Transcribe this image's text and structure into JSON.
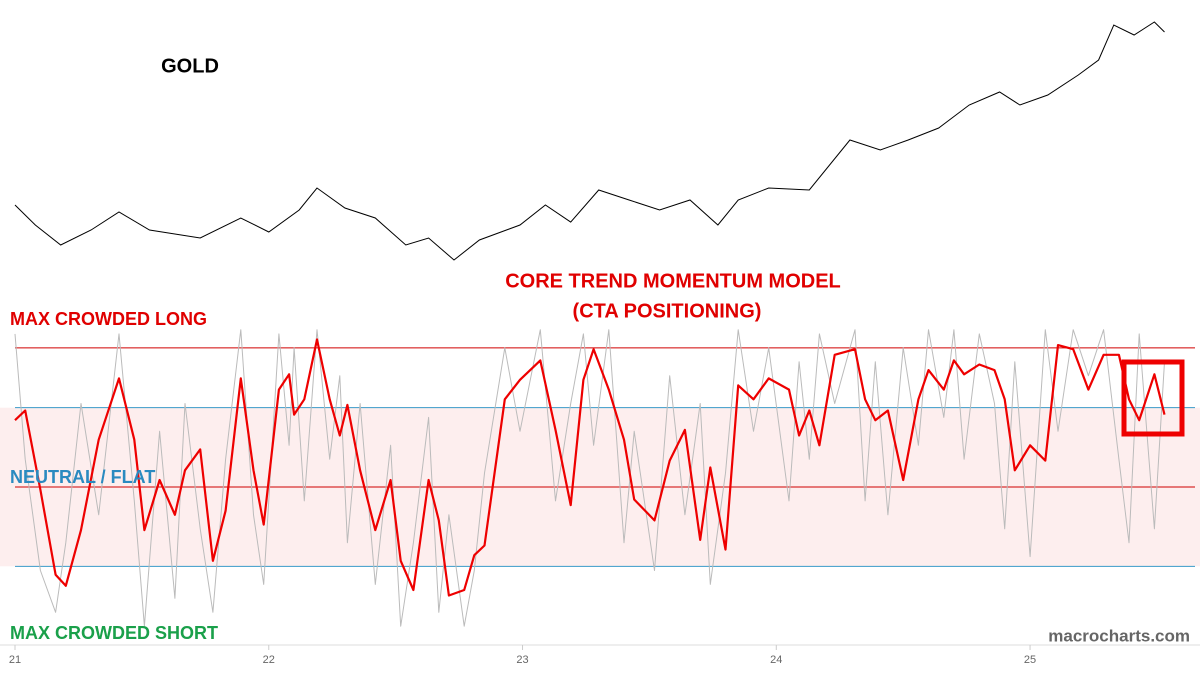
{
  "chart_data": [
    {
      "type": "line",
      "title": "GOLD",
      "color": "#000000",
      "x": [
        21.0,
        21.08,
        21.18,
        21.3,
        21.41,
        21.53,
        21.73,
        21.89,
        22.0,
        22.12,
        22.19,
        22.3,
        22.42,
        22.54,
        22.63,
        22.73,
        22.83,
        22.99,
        23.09,
        23.19,
        23.3,
        23.42,
        23.54,
        23.66,
        23.77,
        23.85,
        23.97,
        24.13,
        24.29,
        24.41,
        24.52,
        24.64,
        24.76,
        24.88,
        24.96,
        25.07,
        25.19,
        25.27,
        25.33,
        25.41,
        25.49,
        25.53
      ],
      "values": [
        2056,
        1904,
        1752,
        1866,
        2003,
        1866,
        1805,
        1957,
        1851,
        2018,
        2185,
        2033,
        1957,
        1752,
        1805,
        1638,
        1790,
        1904,
        2056,
        1926,
        2170,
        2094,
        2018,
        2094,
        1904,
        2094,
        2185,
        2170,
        2550,
        2474,
        2550,
        2641,
        2816,
        2915,
        2816,
        2892,
        3044,
        3158,
        3424,
        3348,
        3447,
        3371
      ],
      "xlim": [
        21,
        25.65
      ],
      "ylim": [
        1600,
        3500
      ]
    },
    {
      "type": "line",
      "title": "CORE TREND MOMENTUM MODEL",
      "subtitle": "(CTA POSITIONING)",
      "x": [
        21.0,
        21.04,
        21.1,
        21.16,
        21.2,
        21.26,
        21.33,
        21.41,
        21.47,
        21.51,
        21.57,
        21.63,
        21.67,
        21.73,
        21.78,
        21.83,
        21.89,
        21.94,
        21.98,
        22.04,
        22.08,
        22.1,
        22.14,
        22.19,
        22.24,
        22.28,
        22.31,
        22.36,
        22.42,
        22.48,
        22.52,
        22.57,
        22.63,
        22.67,
        22.71,
        22.77,
        22.81,
        22.85,
        22.93,
        22.99,
        23.07,
        23.13,
        23.19,
        23.24,
        23.28,
        23.34,
        23.4,
        23.44,
        23.52,
        23.58,
        23.64,
        23.7,
        23.74,
        23.8,
        23.85,
        23.91,
        23.97,
        24.05,
        24.09,
        24.13,
        24.17,
        24.23,
        24.31,
        24.35,
        24.39,
        24.44,
        24.5,
        24.56,
        24.6,
        24.66,
        24.7,
        24.74,
        24.8,
        24.86,
        24.9,
        24.94,
        25.0,
        25.06,
        25.11,
        25.17,
        25.23,
        25.29,
        25.35,
        25.39,
        25.43,
        25.49,
        25.53
      ],
      "series": [
        {
          "color": "#bbbbbb",
          "values": [
            110,
            20,
            -60,
            -90,
            -40,
            60,
            -20,
            110,
            -10,
            -100,
            40,
            -80,
            60,
            -30,
            -90,
            20,
            113,
            -20,
            -70,
            110,
            30,
            100,
            -10,
            113,
            20,
            80,
            -40,
            60,
            -70,
            30,
            -100,
            -40,
            50,
            -90,
            -20,
            -100,
            -60,
            10,
            100,
            40,
            113,
            -10,
            60,
            110,
            30,
            113,
            -40,
            40,
            -60,
            80,
            -20,
            60,
            -70,
            10,
            113,
            40,
            100,
            -10,
            90,
            20,
            110,
            60,
            113,
            -10,
            90,
            -20,
            100,
            30,
            113,
            50,
            113,
            20,
            110,
            60,
            -30,
            90,
            -50,
            113,
            40,
            113,
            80,
            113,
            20,
            -40,
            110,
            -30,
            90
          ]
        },
        {
          "color": "#ee0000",
          "values": [
            48,
            55,
            -2,
            -63,
            -71,
            -31,
            34,
            78,
            34,
            -31,
            5,
            -20,
            12,
            27,
            -53,
            -17,
            78,
            12,
            -27,
            70,
            81,
            52,
            63,
            106,
            63,
            37,
            59,
            12,
            -31,
            5,
            -53,
            -74,
            5,
            -24,
            -78,
            -74,
            -49,
            -42,
            63,
            77,
            91,
            41,
            -13,
            77,
            99,
            70,
            34,
            -9,
            -24,
            19,
            41,
            -38,
            14,
            -45,
            73,
            63,
            78,
            70,
            37,
            55,
            30,
            95,
            99,
            63,
            48,
            55,
            5,
            63,
            84,
            70,
            91,
            81,
            88,
            84,
            63,
            12,
            30,
            19,
            102,
            99,
            70,
            95,
            95,
            63,
            48,
            81,
            52
          ]
        }
      ],
      "hlines": [
        {
          "value": 100,
          "color": "#d00000"
        },
        {
          "value": 57,
          "color": "#3a9ac8"
        },
        {
          "value": 0,
          "color": "#d00000"
        },
        {
          "value": -57,
          "color": "#3a9ac8"
        }
      ],
      "band": {
        "range": [
          -57,
          57
        ],
        "color": "#fdeeee"
      },
      "annotations": [
        {
          "text": "MAX CROWDED LONG",
          "color": "#e00000"
        },
        {
          "text": "NEUTRAL / FLAT",
          "color": "#2a8ac0"
        },
        {
          "text": "MAX CROWDED SHORT",
          "color": "#1aa04a"
        }
      ],
      "source": "macrocharts.com",
      "xlim": [
        21,
        25.65
      ],
      "ylim": [
        -120,
        120
      ],
      "xticks": [
        21,
        22,
        23,
        24,
        25
      ]
    }
  ]
}
